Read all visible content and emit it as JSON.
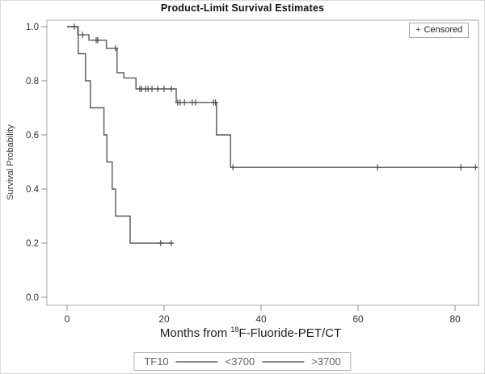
{
  "title": "Product-Limit Survival Estimates",
  "legend": {
    "plus_icon": "+",
    "censored_label": "Censored"
  },
  "axes": {
    "y_label": "Survival Probability",
    "y_ticks": [
      "1.0",
      "0.8",
      "0.6",
      "0.4",
      "0.2",
      "0.0"
    ],
    "x_ticks": [
      "0",
      "20",
      "40",
      "60",
      "80"
    ],
    "x_label_prefix": "Months from ",
    "x_label_sup": "18",
    "x_label_suffix": "F-Fluoride-PET/CT"
  },
  "group_legend": {
    "title": "TF10",
    "entries": [
      {
        "label": "<3700"
      },
      {
        "label": ">3700"
      }
    ]
  },
  "colors": {
    "curve": "#585858",
    "frame": "#a9a9a9",
    "legend_text": "#636363",
    "background": "#ffffff"
  },
  "chart_data": {
    "type": "line",
    "subtype": "kaplan-meier-step",
    "title": "Product-Limit Survival Estimates",
    "xlabel": "Months from 18F-Fluoride-PET/CT",
    "ylabel": "Survival Probability",
    "xlim": [
      -4,
      85
    ],
    "ylim": [
      -0.03,
      1.03
    ],
    "x_tick_values": [
      0,
      20,
      40,
      60,
      80
    ],
    "y_tick_values": [
      0.0,
      0.2,
      0.4,
      0.6,
      0.8,
      1.0
    ],
    "grid": false,
    "legend_position": "censored top-right; group legend bottom center",
    "series": [
      {
        "name": "<3700",
        "steps": [
          [
            0,
            1.0
          ],
          [
            2.2,
            1.0
          ],
          [
            2.2,
            0.97
          ],
          [
            4.5,
            0.97
          ],
          [
            4.5,
            0.95
          ],
          [
            8.1,
            0.95
          ],
          [
            8.1,
            0.92
          ],
          [
            10.3,
            0.92
          ],
          [
            10.3,
            0.83
          ],
          [
            11.7,
            0.83
          ],
          [
            11.7,
            0.81
          ],
          [
            14.2,
            0.81
          ],
          [
            14.2,
            0.77
          ],
          [
            22.5,
            0.77
          ],
          [
            22.5,
            0.72
          ],
          [
            30.8,
            0.72
          ],
          [
            30.8,
            0.6
          ],
          [
            33.7,
            0.6
          ],
          [
            33.7,
            0.48
          ],
          [
            84.5,
            0.48
          ]
        ],
        "censored": [
          [
            1.5,
            1.0
          ],
          [
            3.2,
            0.97
          ],
          [
            6.0,
            0.95
          ],
          [
            6.3,
            0.95
          ],
          [
            10.0,
            0.92
          ],
          [
            15.0,
            0.77
          ],
          [
            15.4,
            0.77
          ],
          [
            16.2,
            0.77
          ],
          [
            16.7,
            0.77
          ],
          [
            17.5,
            0.77
          ],
          [
            18.7,
            0.77
          ],
          [
            20.0,
            0.77
          ],
          [
            21.5,
            0.77
          ],
          [
            22.8,
            0.72
          ],
          [
            23.3,
            0.72
          ],
          [
            24.2,
            0.72
          ],
          [
            25.8,
            0.72
          ],
          [
            26.5,
            0.72
          ],
          [
            30.2,
            0.72
          ],
          [
            30.6,
            0.72
          ],
          [
            34.2,
            0.48
          ],
          [
            64.0,
            0.48
          ],
          [
            81.2,
            0.48
          ],
          [
            84.2,
            0.48
          ]
        ]
      },
      {
        "name": ">3700",
        "steps": [
          [
            0,
            1.0
          ],
          [
            2.3,
            1.0
          ],
          [
            2.3,
            0.9
          ],
          [
            3.8,
            0.9
          ],
          [
            3.8,
            0.8
          ],
          [
            4.8,
            0.8
          ],
          [
            4.8,
            0.7
          ],
          [
            7.6,
            0.7
          ],
          [
            7.6,
            0.6
          ],
          [
            8.2,
            0.6
          ],
          [
            8.2,
            0.5
          ],
          [
            9.3,
            0.5
          ],
          [
            9.3,
            0.4
          ],
          [
            10.0,
            0.4
          ],
          [
            10.0,
            0.3
          ],
          [
            13.0,
            0.3
          ],
          [
            13.0,
            0.2
          ],
          [
            21.7,
            0.2
          ]
        ],
        "censored": [
          [
            19.3,
            0.2
          ],
          [
            21.5,
            0.2
          ]
        ]
      }
    ]
  }
}
